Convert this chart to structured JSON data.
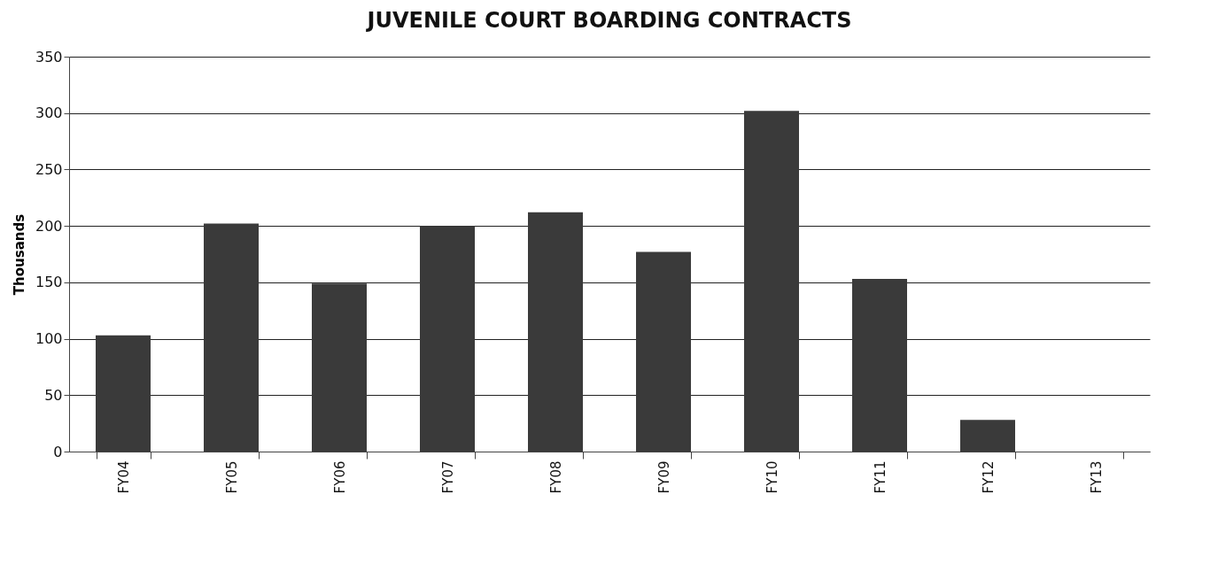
{
  "chart_data": {
    "type": "bar",
    "title": "JUVENILE COURT BOARDING CONTRACTS",
    "ylabel": "Thousands",
    "categories": [
      "FY04",
      "FY05",
      "FY06",
      "FY07",
      "FY08",
      "FY09",
      "FY10",
      "FY11",
      "FY12",
      "FY13"
    ],
    "values": [
      103,
      202,
      149,
      200,
      212,
      177,
      302,
      153,
      28,
      0
    ],
    "color": "#3a3a3a",
    "ylim": [
      0,
      350
    ],
    "yticks": [
      0,
      50,
      100,
      150,
      200,
      250,
      300,
      350
    ],
    "grid": "y"
  }
}
